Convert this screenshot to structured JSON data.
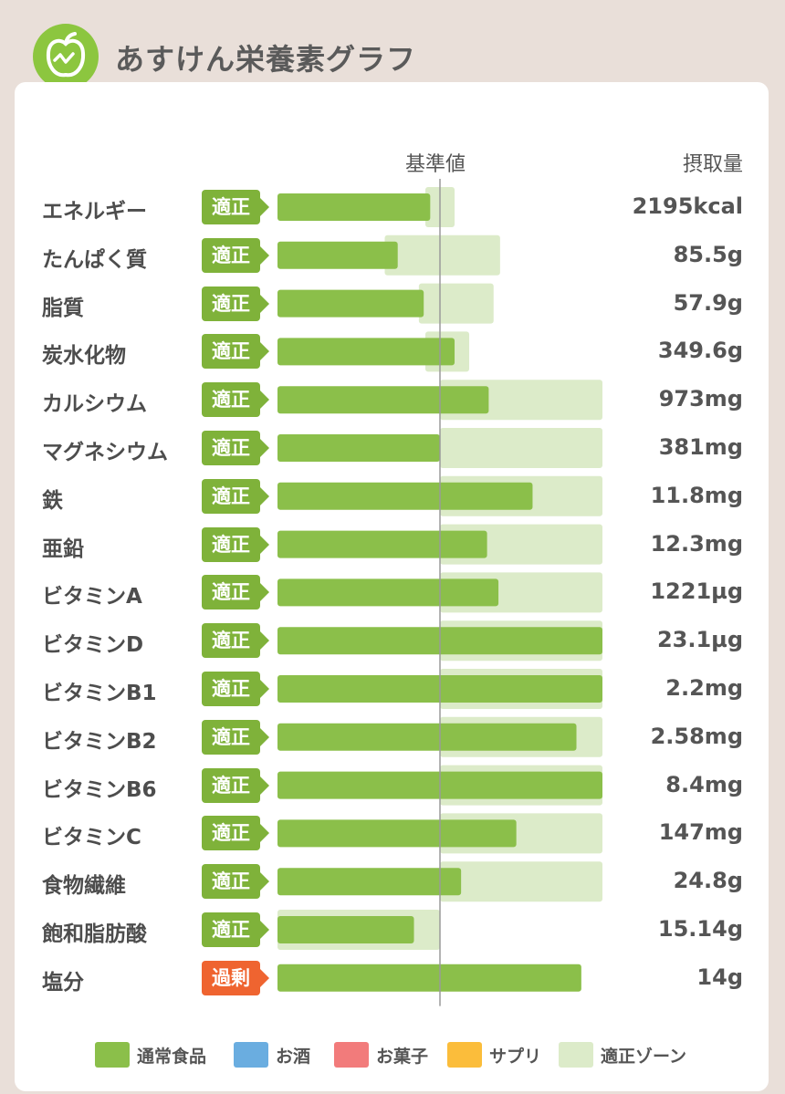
{
  "header": {
    "title": "あすけん栄養素グラフ",
    "logo_icon": "apple-logo-icon"
  },
  "chart_data": {
    "type": "bar",
    "orientation": "horizontal",
    "column_headers": {
      "reference": "基準値",
      "intake": "摂取量"
    },
    "reference_percent": 100,
    "xlim_percent": [
      0,
      200
    ],
    "rows": [
      {
        "name": "エネルギー",
        "status": "適正",
        "status_type": "ok",
        "value_text": "2195kcal",
        "intake_pct": 94,
        "zone_pct": [
          91,
          109
        ]
      },
      {
        "name": "たんぱく質",
        "status": "適正",
        "status_type": "ok",
        "value_text": "85.5g",
        "intake_pct": 74,
        "zone_pct": [
          66,
          137
        ]
      },
      {
        "name": "脂質",
        "status": "適正",
        "status_type": "ok",
        "value_text": "57.9g",
        "intake_pct": 90,
        "zone_pct": [
          87,
          133
        ]
      },
      {
        "name": "炭水化物",
        "status": "適正",
        "status_type": "ok",
        "value_text": "349.6g",
        "intake_pct": 109,
        "zone_pct": [
          91,
          118
        ]
      },
      {
        "name": "カルシウム",
        "status": "適正",
        "status_type": "ok",
        "value_text": "973mg",
        "intake_pct": 130,
        "zone_pct": [
          100,
          200
        ]
      },
      {
        "name": "マグネシウム",
        "status": "適正",
        "status_type": "ok",
        "value_text": "381mg",
        "intake_pct": 100,
        "zone_pct": [
          100,
          200
        ]
      },
      {
        "name": "鉄",
        "status": "適正",
        "status_type": "ok",
        "value_text": "11.8mg",
        "intake_pct": 157,
        "zone_pct": [
          100,
          200
        ]
      },
      {
        "name": "亜鉛",
        "status": "適正",
        "status_type": "ok",
        "value_text": "12.3mg",
        "intake_pct": 129,
        "zone_pct": [
          100,
          200
        ]
      },
      {
        "name": "ビタミンA",
        "status": "適正",
        "status_type": "ok",
        "value_text": "1221µg",
        "intake_pct": 136,
        "zone_pct": [
          100,
          200
        ]
      },
      {
        "name": "ビタミンD",
        "status": "適正",
        "status_type": "ok",
        "value_text": "23.1µg",
        "intake_pct": 200,
        "zone_pct": [
          100,
          200
        ]
      },
      {
        "name": "ビタミンB1",
        "status": "適正",
        "status_type": "ok",
        "value_text": "2.2mg",
        "intake_pct": 200,
        "zone_pct": [
          100,
          200
        ]
      },
      {
        "name": "ビタミンB2",
        "status": "適正",
        "status_type": "ok",
        "value_text": "2.58mg",
        "intake_pct": 184,
        "zone_pct": [
          100,
          200
        ]
      },
      {
        "name": "ビタミンB6",
        "status": "適正",
        "status_type": "ok",
        "value_text": "8.4mg",
        "intake_pct": 200,
        "zone_pct": [
          100,
          200
        ]
      },
      {
        "name": "ビタミンC",
        "status": "適正",
        "status_type": "ok",
        "value_text": "147mg",
        "intake_pct": 147,
        "zone_pct": [
          100,
          200
        ]
      },
      {
        "name": "食物繊維",
        "status": "適正",
        "status_type": "ok",
        "value_text": "24.8g",
        "intake_pct": 113,
        "zone_pct": [
          100,
          200
        ]
      },
      {
        "name": "飽和脂肪酸",
        "status": "適正",
        "status_type": "ok",
        "value_text": "15.14g",
        "intake_pct": 84,
        "zone_pct": [
          0,
          100
        ]
      },
      {
        "name": "塩分",
        "status": "過剰",
        "status_type": "over",
        "value_text": "14g",
        "intake_pct": 187,
        "zone_pct": null
      }
    ],
    "legend": [
      {
        "label": "通常食品",
        "color": "#8bbf4a"
      },
      {
        "label": "お酒",
        "color": "#6aade0"
      },
      {
        "label": "お菓子",
        "color": "#f27b7b"
      },
      {
        "label": "サプリ",
        "color": "#fbbd3b"
      },
      {
        "label": "適正ゾーン",
        "color": "#dcebc9"
      }
    ]
  },
  "colors": {
    "bar": "#8bbf4a",
    "zone": "#dcebc9",
    "ok_badge": "#7fb23a",
    "over_badge": "#ef6430",
    "reference_line": "#9a9a9a"
  }
}
